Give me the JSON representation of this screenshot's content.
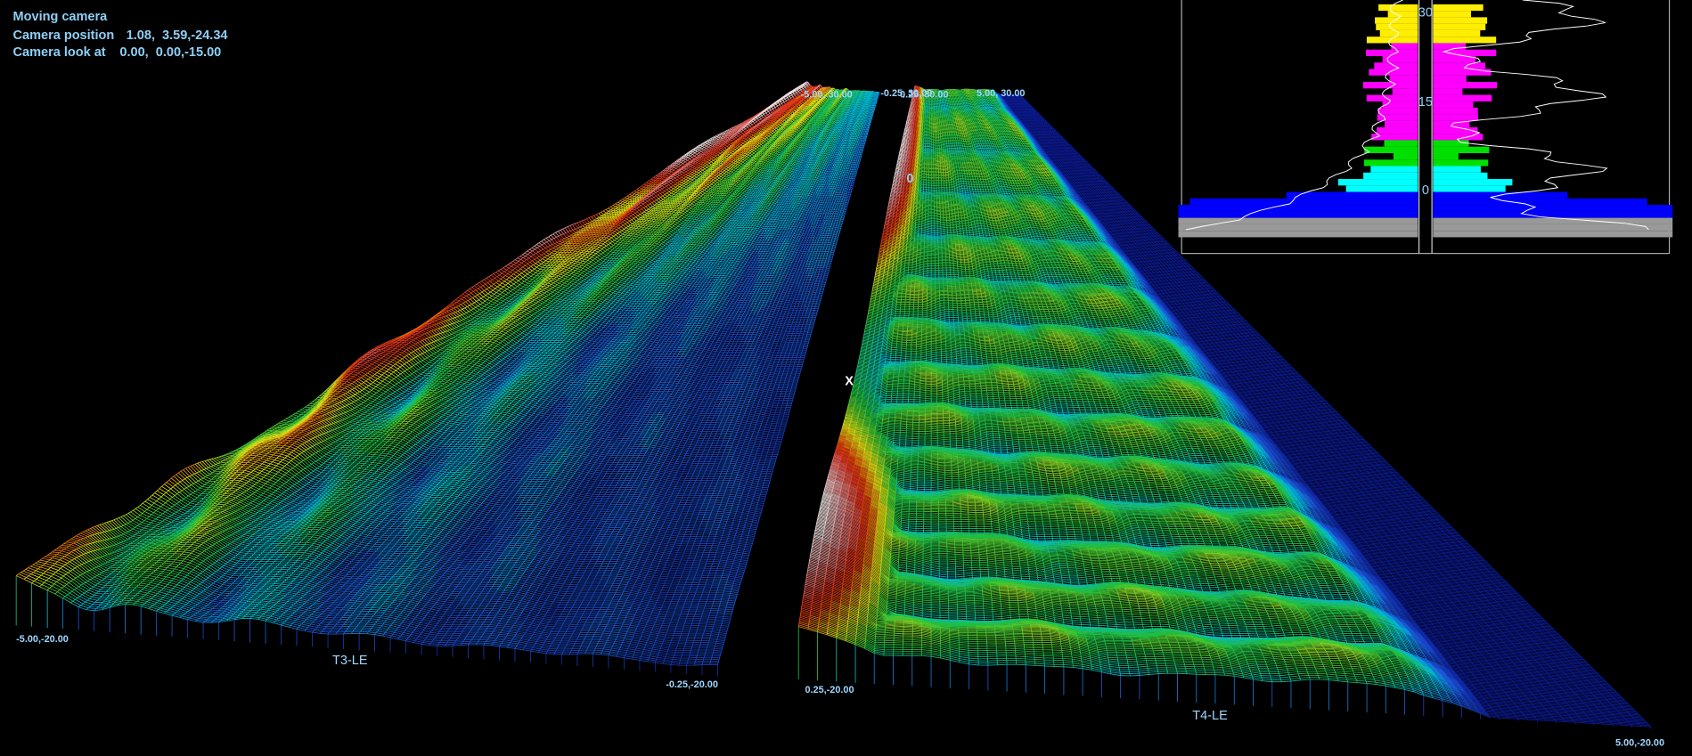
{
  "header": {
    "title": "Moving camera",
    "rows": [
      {
        "label": "Camera position",
        "value": "1.08,  3.59,-24.34"
      },
      {
        "label": "Camera look at",
        "value": "0.00,  0.00,-15.00"
      }
    ]
  },
  "panels": [
    {
      "name": "T3-LE",
      "corners": {
        "near_left": "-5.00,-20.00",
        "near_right": "-0.25,-20.00",
        "far_left": "-5.00, 30.00",
        "far_right": "-0.25, 30.00"
      }
    },
    {
      "name": "T4-LE",
      "corners": {
        "near_left": "0.25,-20.00",
        "near_right": "5.00,-20.00",
        "far_left": "0.25, 30.00",
        "far_right": "5.00, 30.00"
      }
    }
  ],
  "markers": [
    "0",
    "X"
  ],
  "inset": {
    "ticks": [
      "30",
      "15",
      "0"
    ]
  }
}
